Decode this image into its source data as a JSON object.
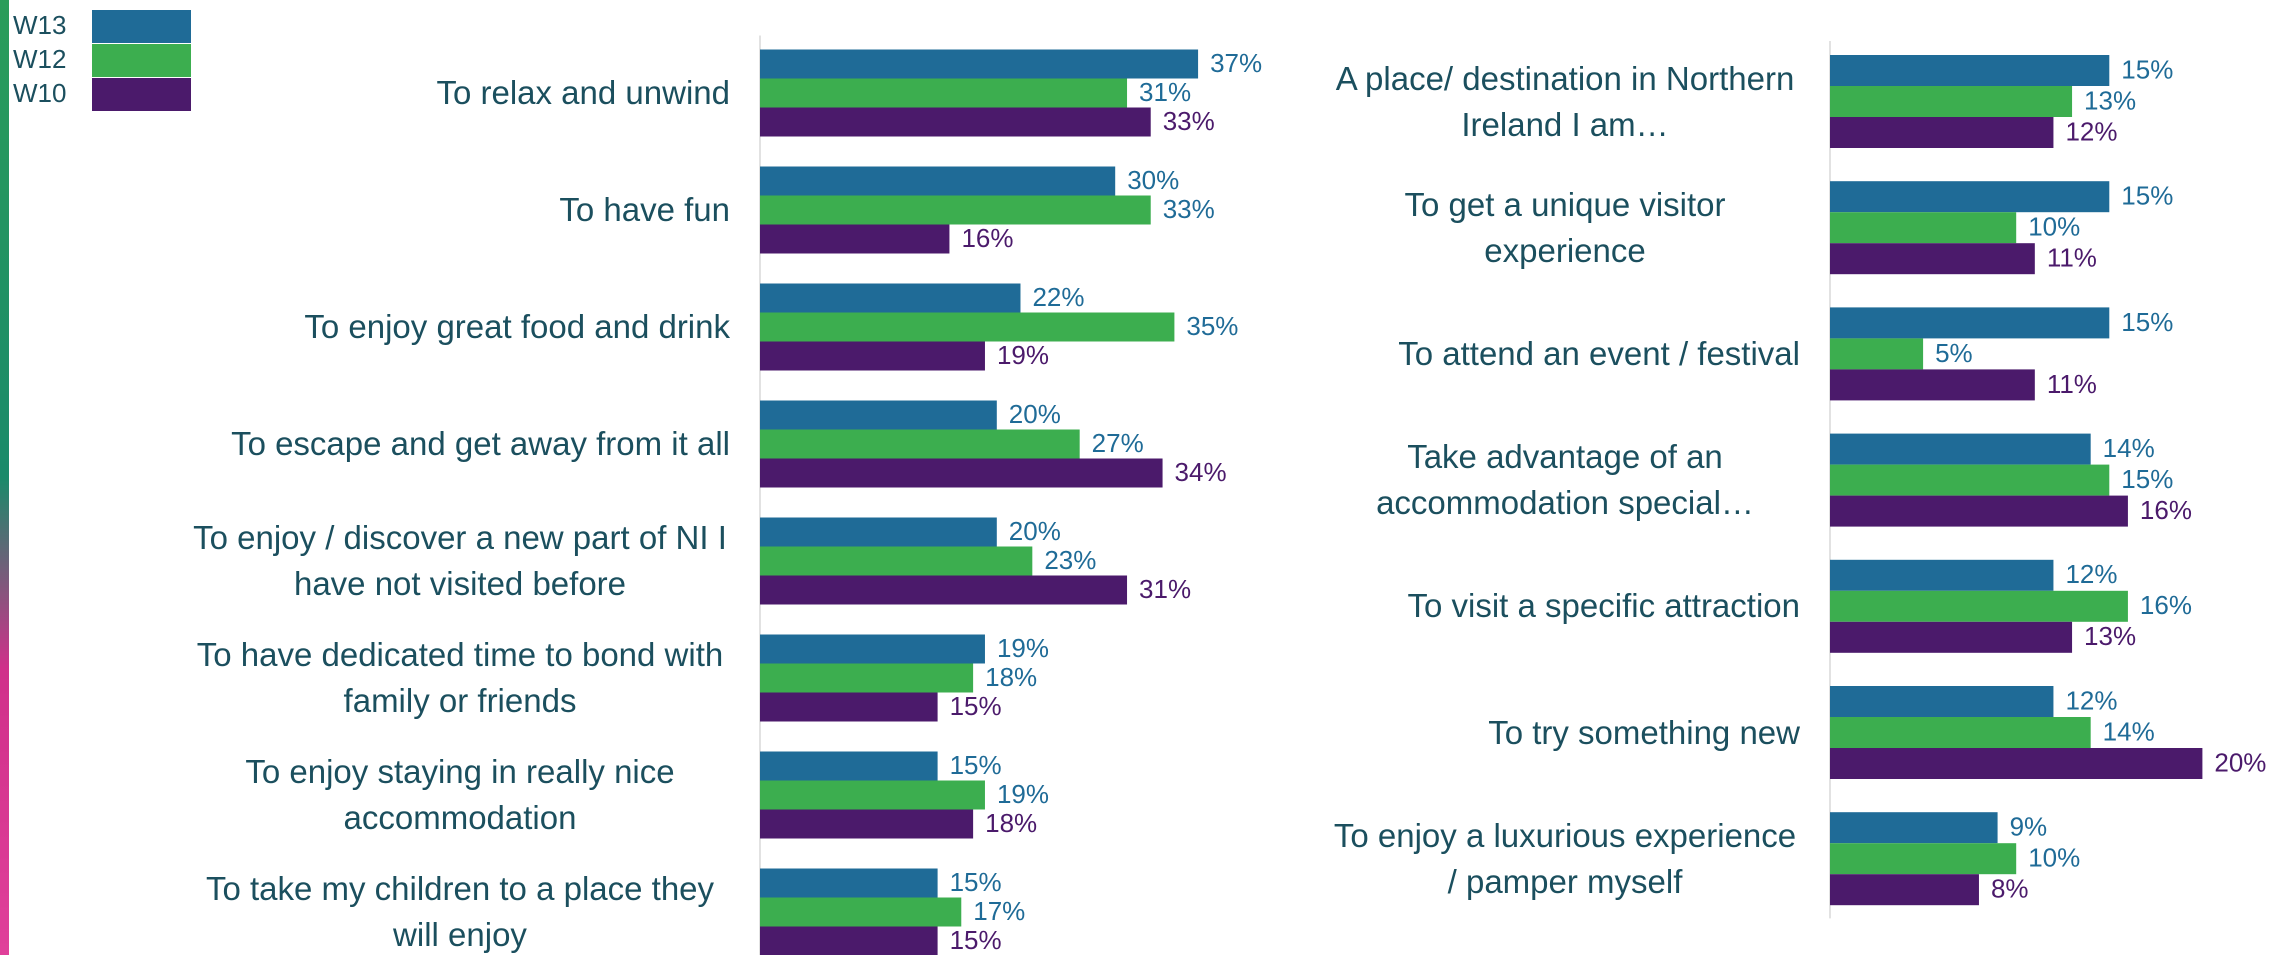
{
  "chart_data": [
    {
      "type": "bar",
      "categories": [
        "To relax and unwind",
        "To have fun",
        "To enjoy great food and drink",
        "To escape and get away from it all",
        "To enjoy / discover a new part of NI I have not visited before",
        "To have dedicated time to bond with family or friends",
        "To enjoy staying in really nice accommodation",
        "To take my children to a place they will enjoy"
      ],
      "series": [
        {
          "name": "W13",
          "color": "#1f6b97",
          "values": [
            37,
            30,
            22,
            20,
            20,
            19,
            15,
            15
          ],
          "value_labels": [
            "37%",
            "30%",
            "22%",
            "20%",
            "20%",
            "19%",
            "15%",
            "15%"
          ]
        },
        {
          "name": "W12",
          "color": "#3cae4f",
          "values": [
            31,
            33,
            35,
            27,
            23,
            18,
            19,
            17
          ],
          "value_labels": [
            "31%",
            "33%",
            "35%",
            "27%",
            "23%",
            "18%",
            "19%",
            "17%"
          ]
        },
        {
          "name": "W10",
          "color": "#4b1a6b",
          "values": [
            33,
            16,
            19,
            34,
            31,
            15,
            18,
            15
          ],
          "value_labels": [
            "33%",
            "16%",
            "19%",
            "34%",
            "31%",
            "15%",
            "18%",
            "15%"
          ]
        }
      ]
    },
    {
      "type": "bar",
      "categories": [
        "A place/ destination in Northern Ireland I am…",
        "To get a unique visitor experience",
        "To attend an event / festival",
        "Take advantage of an accommodation special…",
        "To visit a specific attraction",
        "To try something new",
        "To enjoy a luxurious experience / pamper myself"
      ],
      "series": [
        {
          "name": "W13",
          "color": "#1f6b97",
          "values": [
            15,
            15,
            15,
            14,
            12,
            12,
            9
          ],
          "value_labels": [
            "15%",
            "15%",
            "15%",
            "14%",
            "12%",
            "12%",
            "9%"
          ]
        },
        {
          "name": "W12",
          "color": "#3cae4f",
          "values": [
            13,
            10,
            5,
            15,
            16,
            14,
            10
          ],
          "value_labels": [
            "13%",
            "10%",
            "5%",
            "15%",
            "16%",
            "14%",
            "10%"
          ]
        },
        {
          "name": "W10",
          "color": "#4b1a6b",
          "values": [
            12,
            11,
            11,
            16,
            13,
            20,
            8
          ],
          "value_labels": [
            "12%",
            "11%",
            "11%",
            "16%",
            "13%",
            "20%",
            "8%"
          ]
        }
      ]
    }
  ]
}
